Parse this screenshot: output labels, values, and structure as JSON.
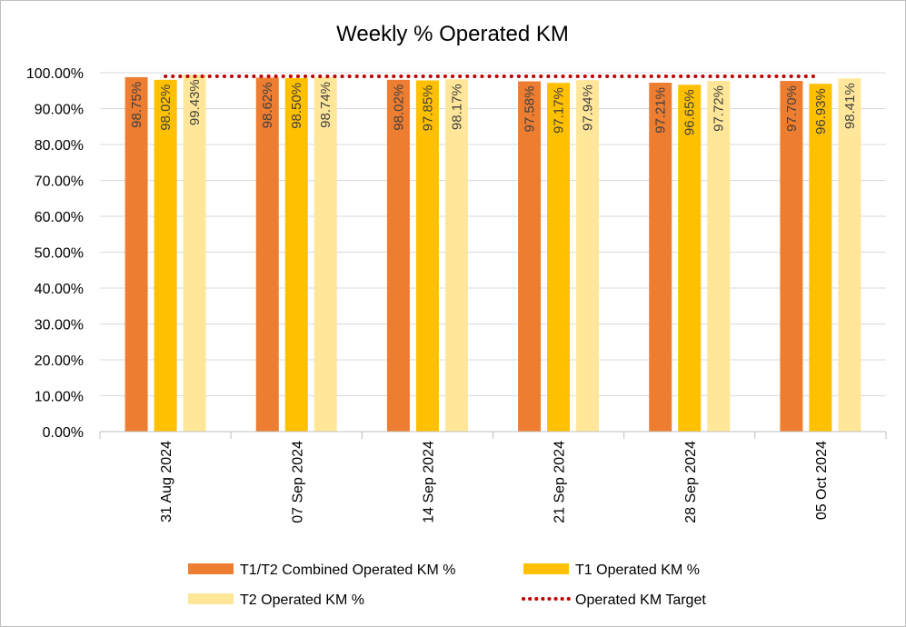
{
  "chart_data": {
    "type": "bar",
    "title": "Weekly % Operated KM",
    "categories": [
      "31 Aug 2024",
      "07 Sep 2024",
      "14 Sep 2024",
      "21 Sep 2024",
      "28 Sep 2024",
      "05 Oct 2024"
    ],
    "series": [
      {
        "name": "T1/T2 Combined Operated KM %",
        "color": "#ed7d31",
        "values": [
          98.75,
          98.62,
          98.02,
          97.58,
          97.21,
          97.7
        ],
        "labels": [
          "98.75%",
          "98.62%",
          "98.02%",
          "97.58%",
          "97.21%",
          "97.70%"
        ]
      },
      {
        "name": "T1 Operated KM %",
        "color": "#ffc000",
        "values": [
          98.02,
          98.5,
          97.85,
          97.17,
          96.65,
          96.93
        ],
        "labels": [
          "98.02%",
          "98.50%",
          "97.85%",
          "97.17%",
          "96.65%",
          "96.93%"
        ]
      },
      {
        "name": "T2 Operated KM %",
        "color": "#ffe699",
        "values": [
          99.43,
          98.74,
          98.17,
          97.94,
          97.72,
          98.41
        ],
        "labels": [
          "99.43%",
          "98.74%",
          "98.17%",
          "97.94%",
          "97.72%",
          "98.41%"
        ]
      }
    ],
    "target": {
      "name": "Operated KM Target",
      "color": "#c00000",
      "value": 99.0
    },
    "ylim": [
      0,
      100
    ],
    "yticks": [
      "0.00%",
      "10.00%",
      "20.00%",
      "30.00%",
      "40.00%",
      "50.00%",
      "60.00%",
      "70.00%",
      "80.00%",
      "90.00%",
      "100.00%"
    ],
    "grid": true,
    "legend_position": "bottom"
  }
}
